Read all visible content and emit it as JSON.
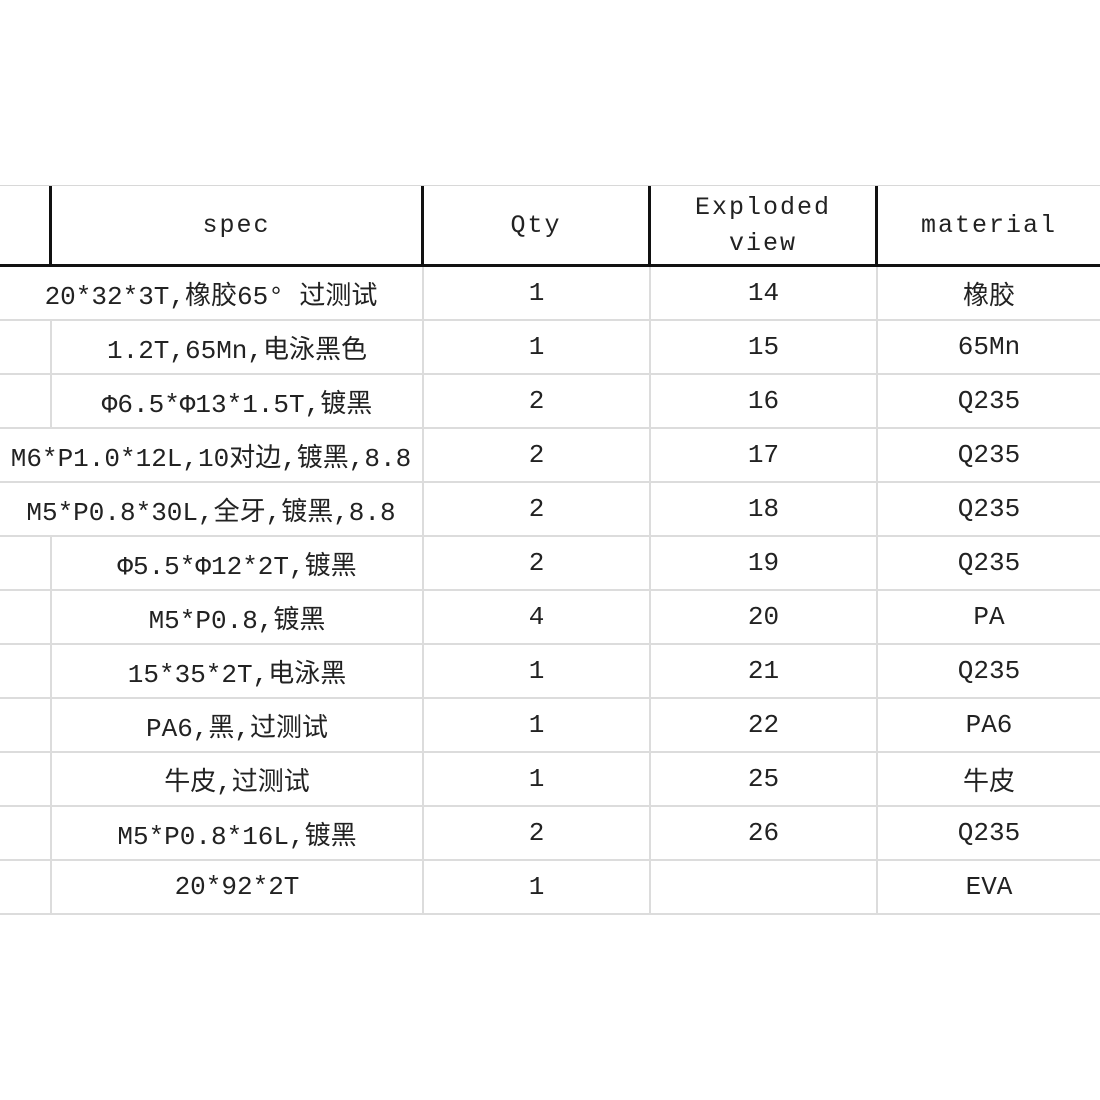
{
  "headers": {
    "blank": "",
    "spec": "spec",
    "qty": "Qty",
    "exploded": "Exploded\nview",
    "material": "material"
  },
  "rows": [
    {
      "spec": "20*32*3T,橡胶65°  过测试",
      "qty": "1",
      "view": "14",
      "material": "橡胶",
      "overflow": true
    },
    {
      "spec": "1.2T,65Mn,电泳黑色",
      "qty": "1",
      "view": "15",
      "material": "65Mn",
      "overflow": false
    },
    {
      "spec": "Φ6.5*Φ13*1.5T,镀黑",
      "qty": "2",
      "view": "16",
      "material": "Q235",
      "overflow": false
    },
    {
      "spec": "M6*P1.0*12L,10对边,镀黑,8.8",
      "qty": "2",
      "view": "17",
      "material": "Q235",
      "overflow": true
    },
    {
      "spec": "M5*P0.8*30L,全牙,镀黑,8.8",
      "qty": "2",
      "view": "18",
      "material": "Q235",
      "overflow": true
    },
    {
      "spec": "Φ5.5*Φ12*2T,镀黑",
      "qty": "2",
      "view": "19",
      "material": "Q235",
      "overflow": false
    },
    {
      "spec": "M5*P0.8,镀黑",
      "qty": "4",
      "view": "20",
      "material": "PA",
      "overflow": false
    },
    {
      "spec": "15*35*2T,电泳黑",
      "qty": "1",
      "view": "21",
      "material": "Q235",
      "overflow": false
    },
    {
      "spec": "PA6,黑,过测试",
      "qty": "1",
      "view": "22",
      "material": "PA6",
      "overflow": false
    },
    {
      "spec": "牛皮,过测试",
      "qty": "1",
      "view": "25",
      "material": "牛皮",
      "overflow": false
    },
    {
      "spec": "M5*P0.8*16L,镀黑",
      "qty": "2",
      "view": "26",
      "material": "Q235",
      "overflow": false
    },
    {
      "spec": "20*92*2T",
      "qty": "1",
      "view": "",
      "material": "EVA",
      "overflow": false
    }
  ]
}
